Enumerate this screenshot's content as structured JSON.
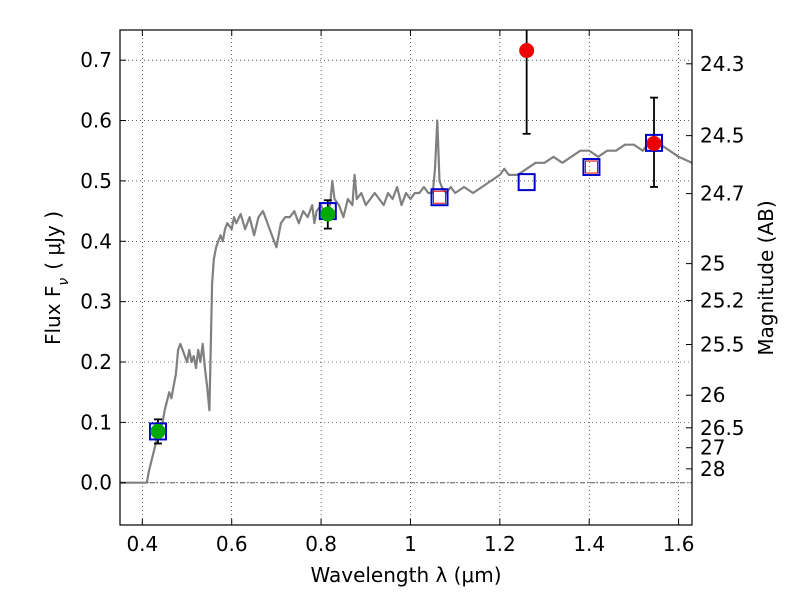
{
  "chart_data": {
    "type": "scatter",
    "title": "",
    "xlabel": "Wavelength  λ (μm)",
    "ylabel": "Flux  F",
    "ylabel_sub": "ν",
    "ylabel_unit": "( μJy )",
    "y2label": "Magnitude (AB)",
    "xlim": [
      0.35,
      1.63
    ],
    "ylim": [
      -0.07,
      0.75
    ],
    "grid": true,
    "x_ticks": [
      0.4,
      0.6,
      0.8,
      1.0,
      1.2,
      1.4,
      1.6
    ],
    "x_tick_labels": [
      "0.4",
      "0.6",
      "0.8",
      "1",
      "1.2",
      "1.4",
      "1.6"
    ],
    "y_ticks": [
      0.0,
      0.1,
      0.2,
      0.3,
      0.4,
      0.5,
      0.6,
      0.7
    ],
    "y_tick_labels": [
      "0.0",
      "0.1",
      "0.2",
      "0.3",
      "0.4",
      "0.5",
      "0.6",
      "0.7"
    ],
    "mag_ticks": [
      {
        "label": "24.3",
        "flux": 0.694
      },
      {
        "label": "24.5",
        "flux": 0.575
      },
      {
        "label": "24.7",
        "flux": 0.479
      },
      {
        "label": "25",
        "flux": 0.363
      },
      {
        "label": "25.2",
        "flux": 0.302
      },
      {
        "label": "25.5",
        "flux": 0.229
      },
      {
        "label": "26",
        "flux": 0.145
      },
      {
        "label": "26.5",
        "flux": 0.091
      },
      {
        "label": "27",
        "flux": 0.058
      },
      {
        "label": "28",
        "flux": 0.023
      }
    ],
    "series": [
      {
        "kind": "line",
        "color": "#808080",
        "points": [
          [
            0.35,
            0.0
          ],
          [
            0.4,
            0.0
          ],
          [
            0.41,
            0.0
          ],
          [
            0.415,
            0.02
          ],
          [
            0.425,
            0.05
          ],
          [
            0.435,
            0.08
          ],
          [
            0.445,
            0.1
          ],
          [
            0.45,
            0.12
          ],
          [
            0.46,
            0.15
          ],
          [
            0.465,
            0.14
          ],
          [
            0.47,
            0.16
          ],
          [
            0.475,
            0.18
          ],
          [
            0.48,
            0.22
          ],
          [
            0.485,
            0.23
          ],
          [
            0.49,
            0.22
          ],
          [
            0.495,
            0.21
          ],
          [
            0.5,
            0.2
          ],
          [
            0.505,
            0.22
          ],
          [
            0.51,
            0.2
          ],
          [
            0.515,
            0.21
          ],
          [
            0.52,
            0.19
          ],
          [
            0.525,
            0.22
          ],
          [
            0.53,
            0.2
          ],
          [
            0.535,
            0.23
          ],
          [
            0.54,
            0.19
          ],
          [
            0.545,
            0.16
          ],
          [
            0.55,
            0.12
          ],
          [
            0.553,
            0.22
          ],
          [
            0.556,
            0.33
          ],
          [
            0.56,
            0.37
          ],
          [
            0.565,
            0.39
          ],
          [
            0.57,
            0.4
          ],
          [
            0.575,
            0.41
          ],
          [
            0.58,
            0.4
          ],
          [
            0.585,
            0.42
          ],
          [
            0.59,
            0.43
          ],
          [
            0.6,
            0.42
          ],
          [
            0.605,
            0.44
          ],
          [
            0.61,
            0.43
          ],
          [
            0.62,
            0.445
          ],
          [
            0.63,
            0.42
          ],
          [
            0.64,
            0.44
          ],
          [
            0.65,
            0.41
          ],
          [
            0.66,
            0.44
          ],
          [
            0.67,
            0.45
          ],
          [
            0.68,
            0.43
          ],
          [
            0.69,
            0.41
          ],
          [
            0.7,
            0.39
          ],
          [
            0.71,
            0.43
          ],
          [
            0.72,
            0.44
          ],
          [
            0.73,
            0.44
          ],
          [
            0.74,
            0.45
          ],
          [
            0.75,
            0.43
          ],
          [
            0.76,
            0.45
          ],
          [
            0.77,
            0.44
          ],
          [
            0.78,
            0.46
          ],
          [
            0.785,
            0.43
          ],
          [
            0.79,
            0.45
          ],
          [
            0.8,
            0.46
          ],
          [
            0.81,
            0.44
          ],
          [
            0.82,
            0.46
          ],
          [
            0.825,
            0.5
          ],
          [
            0.83,
            0.47
          ],
          [
            0.84,
            0.46
          ],
          [
            0.85,
            0.44
          ],
          [
            0.86,
            0.47
          ],
          [
            0.87,
            0.46
          ],
          [
            0.875,
            0.51
          ],
          [
            0.88,
            0.47
          ],
          [
            0.89,
            0.48
          ],
          [
            0.9,
            0.46
          ],
          [
            0.91,
            0.47
          ],
          [
            0.92,
            0.48
          ],
          [
            0.93,
            0.47
          ],
          [
            0.94,
            0.46
          ],
          [
            0.95,
            0.48
          ],
          [
            0.96,
            0.47
          ],
          [
            0.97,
            0.49
          ],
          [
            0.98,
            0.46
          ],
          [
            0.99,
            0.48
          ],
          [
            1.0,
            0.47
          ],
          [
            1.01,
            0.48
          ],
          [
            1.02,
            0.48
          ],
          [
            1.03,
            0.49
          ],
          [
            1.04,
            0.48
          ],
          [
            1.05,
            0.48
          ],
          [
            1.055,
            0.52
          ],
          [
            1.06,
            0.6
          ],
          [
            1.065,
            0.5
          ],
          [
            1.07,
            0.49
          ],
          [
            1.08,
            0.48
          ],
          [
            1.09,
            0.49
          ],
          [
            1.1,
            0.48
          ],
          [
            1.12,
            0.49
          ],
          [
            1.14,
            0.48
          ],
          [
            1.16,
            0.49
          ],
          [
            1.18,
            0.5
          ],
          [
            1.2,
            0.51
          ],
          [
            1.21,
            0.52
          ],
          [
            1.22,
            0.51
          ],
          [
            1.24,
            0.51
          ],
          [
            1.26,
            0.52
          ],
          [
            1.28,
            0.53
          ],
          [
            1.3,
            0.53
          ],
          [
            1.32,
            0.54
          ],
          [
            1.34,
            0.53
          ],
          [
            1.36,
            0.54
          ],
          [
            1.38,
            0.55
          ],
          [
            1.4,
            0.55
          ],
          [
            1.42,
            0.54
          ],
          [
            1.44,
            0.55
          ],
          [
            1.46,
            0.55
          ],
          [
            1.48,
            0.56
          ],
          [
            1.5,
            0.56
          ],
          [
            1.52,
            0.55
          ],
          [
            1.54,
            0.57
          ],
          [
            1.56,
            0.56
          ],
          [
            1.58,
            0.55
          ],
          [
            1.6,
            0.54
          ],
          [
            1.63,
            0.53
          ]
        ]
      },
      {
        "kind": "open_square",
        "color": "#0000cc",
        "points": [
          [
            0.435,
            0.085
          ],
          [
            0.815,
            0.45
          ],
          [
            1.065,
            0.473
          ],
          [
            1.26,
            0.498
          ],
          [
            1.405,
            0.523
          ],
          [
            1.545,
            0.563
          ]
        ]
      },
      {
        "kind": "open_square_small",
        "color": "#dd0000",
        "points": [
          [
            1.065,
            0.473
          ],
          [
            1.405,
            0.523
          ]
        ]
      },
      {
        "kind": "filled_circle",
        "color": "#00aa00",
        "points": [
          [
            0.435,
            0.085
          ],
          [
            0.815,
            0.445
          ]
        ]
      },
      {
        "kind": "filled_circle",
        "color": "#ee0000",
        "points": [
          [
            1.26,
            0.716
          ],
          [
            1.545,
            0.562
          ]
        ]
      }
    ],
    "errorbars": [
      {
        "x": 0.435,
        "y": 0.085,
        "lo": 0.065,
        "hi": 0.105
      },
      {
        "x": 0.815,
        "y": 0.445,
        "lo": 0.421,
        "hi": 0.468
      },
      {
        "x": 1.26,
        "y": 0.716,
        "lo": 0.578,
        "hi": 0.75
      },
      {
        "x": 1.545,
        "y": 0.562,
        "lo": 0.49,
        "hi": 0.638
      }
    ],
    "zero_line": 0.0
  }
}
